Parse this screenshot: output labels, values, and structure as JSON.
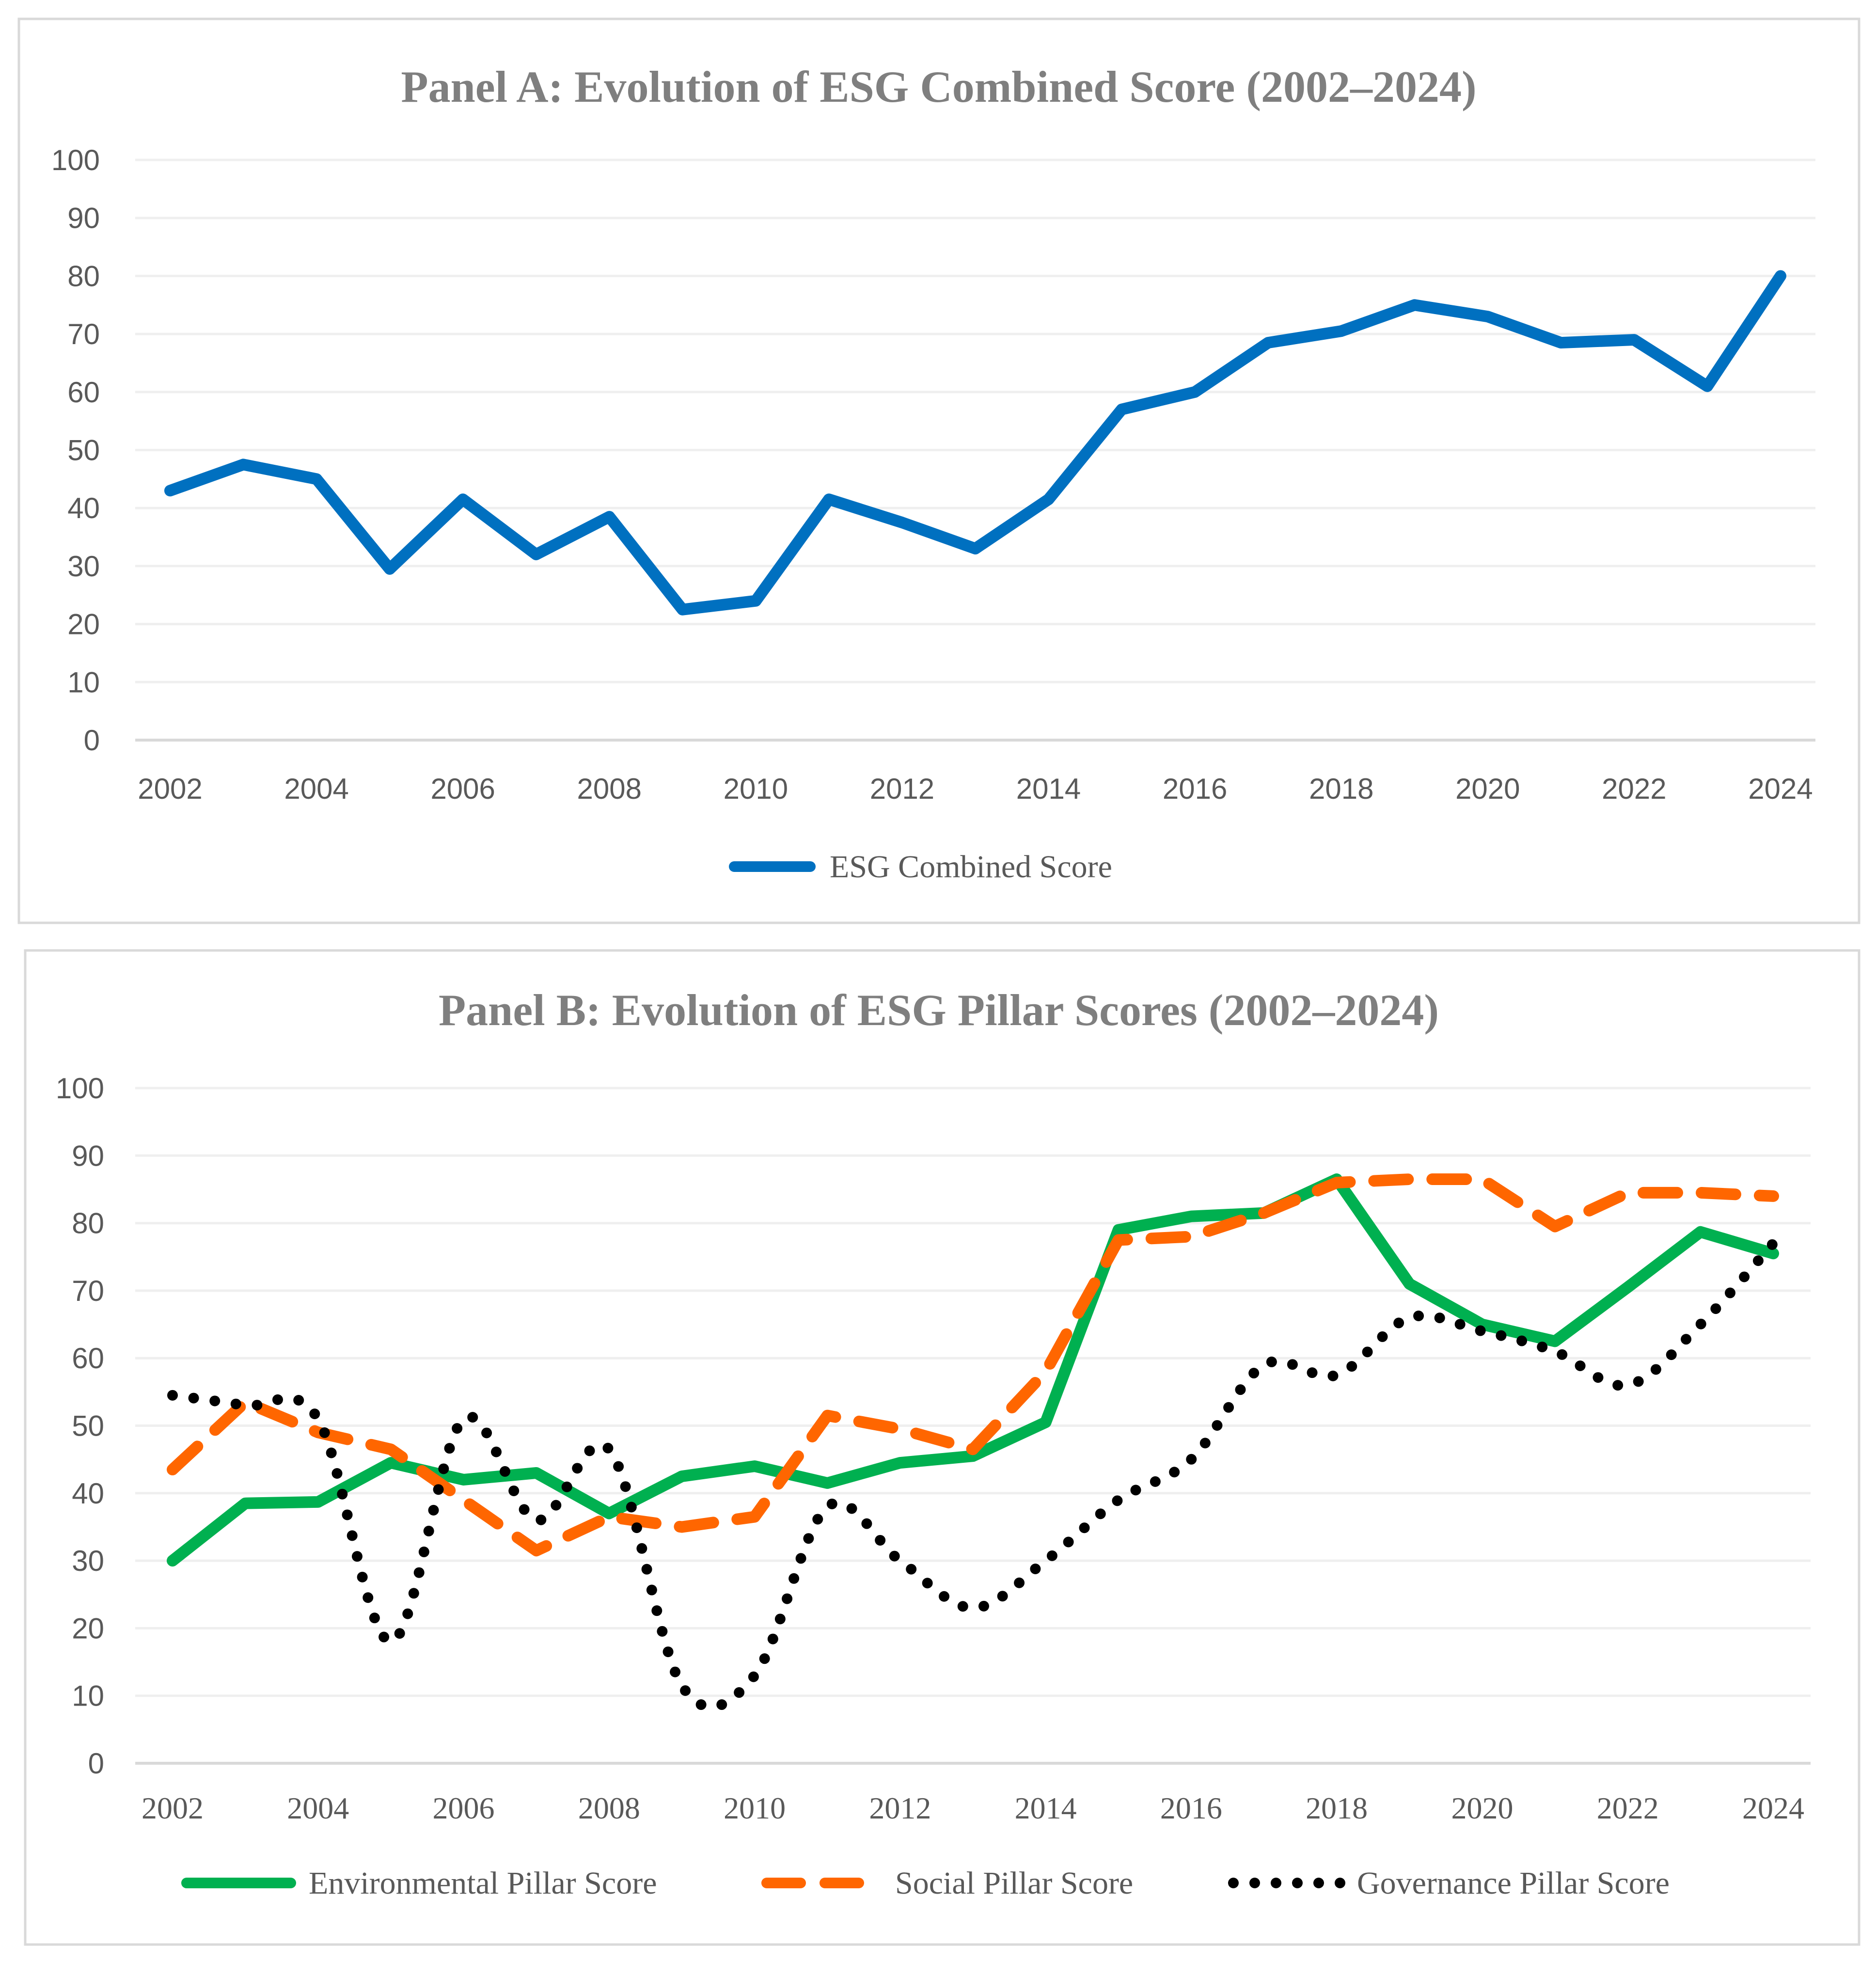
{
  "chart_data": [
    {
      "type": "line",
      "title": "Panel A: Evolution of ESG Combined Score (2002–2024)",
      "xlabel": "",
      "ylabel": "",
      "x": [
        2002,
        2003,
        2004,
        2005,
        2006,
        2007,
        2008,
        2009,
        2010,
        2011,
        2012,
        2013,
        2014,
        2015,
        2016,
        2017,
        2018,
        2019,
        2020,
        2021,
        2022,
        2023,
        2024
      ],
      "x_tick_labels": [
        "2002",
        "2004",
        "2006",
        "2008",
        "2010",
        "2012",
        "2014",
        "2016",
        "2018",
        "2020",
        "2022",
        "2024"
      ],
      "y_tick_labels": [
        "0",
        "10",
        "20",
        "30",
        "40",
        "50",
        "60",
        "70",
        "80",
        "90",
        "100"
      ],
      "ylim": [
        0,
        100
      ],
      "grid": true,
      "legend_position": "bottom",
      "series": [
        {
          "name": "ESG Combined Score",
          "color": "#0070c0",
          "style": "solid",
          "values": [
            43,
            47.5,
            45,
            29.5,
            41.5,
            32,
            38.5,
            22.5,
            24,
            41.5,
            37.5,
            33,
            41.5,
            57,
            60,
            68.5,
            70.5,
            75,
            73,
            68.5,
            69,
            61,
            80
          ]
        }
      ]
    },
    {
      "type": "line",
      "title": "Panel B: Evolution of ESG Pillar Scores (2002–2024)",
      "xlabel": "",
      "ylabel": "",
      "x": [
        2002,
        2003,
        2004,
        2005,
        2006,
        2007,
        2008,
        2009,
        2010,
        2011,
        2012,
        2013,
        2014,
        2015,
        2016,
        2017,
        2018,
        2019,
        2020,
        2021,
        2022,
        2023,
        2024
      ],
      "x_tick_labels": [
        "2002",
        "2004",
        "2006",
        "2008",
        "2010",
        "2012",
        "2014",
        "2016",
        "2018",
        "2020",
        "2022",
        "2024"
      ],
      "y_tick_labels": [
        "0",
        "10",
        "20",
        "30",
        "40",
        "50",
        "60",
        "70",
        "80",
        "90",
        "100"
      ],
      "ylim": [
        0,
        100
      ],
      "grid": true,
      "legend_position": "bottom",
      "series": [
        {
          "name": "Environmental Pillar Score",
          "color": "#00b050",
          "style": "solid",
          "values": [
            30,
            38.5,
            38.7,
            44.5,
            42,
            43,
            37,
            42.5,
            44,
            41.5,
            44.5,
            45.5,
            50.5,
            79,
            81,
            81.5,
            86.5,
            71,
            65,
            62.5,
            70.5,
            78.7,
            75.5
          ]
        },
        {
          "name": "Social Pillar Score",
          "color": "#ff6600",
          "style": "dashed",
          "values": [
            43.5,
            53.5,
            49,
            46.5,
            39,
            31.5,
            36.5,
            35,
            36.5,
            51.5,
            49.5,
            46.5,
            58,
            77.5,
            78,
            81.5,
            86,
            86.5,
            86.5,
            79.5,
            84.5,
            84.5,
            84
          ]
        },
        {
          "name": "Governance Pillar Score",
          "color": "#000000",
          "style": "dotted",
          "values": [
            54.5,
            53,
            51,
            18,
            51,
            36,
            46.5,
            11.5,
            13,
            38,
            30,
            23,
            30,
            39,
            45,
            59,
            57.5,
            66,
            64,
            61,
            56,
            65,
            77
          ]
        }
      ]
    }
  ]
}
